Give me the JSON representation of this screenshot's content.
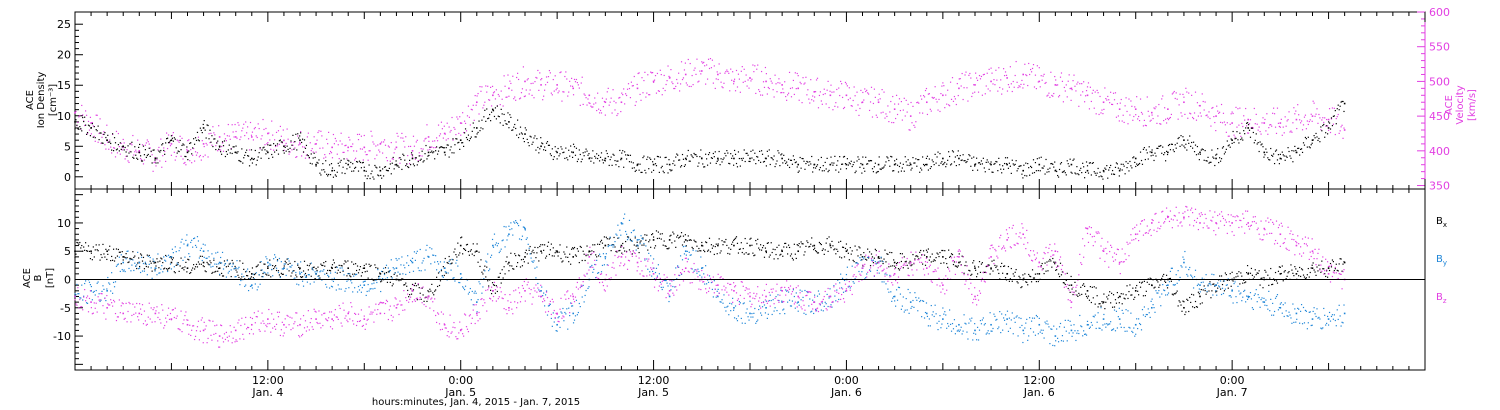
{
  "chart_data": [
    {
      "type": "scatter",
      "panel": "top",
      "title": "",
      "ylabel_left": [
        "ACE",
        "Ion Density",
        "[cm⁻³]"
      ],
      "ylabel_right": [
        "ACE",
        "Velocity",
        "[km/s]"
      ],
      "xlim_hours": [
        0,
        84
      ],
      "ylim_left": [
        -2,
        27
      ],
      "ylim_right": [
        345,
        600
      ],
      "yticks_left": [
        "0",
        "5",
        "10",
        "15",
        "20",
        "25"
      ],
      "yticks_right": [
        "350",
        "400",
        "450",
        "500",
        "550",
        "600"
      ],
      "colors": {
        "density": "#000000",
        "velocity": "#e23fe2"
      },
      "series": [
        {
          "name": "",
          "axis": "left",
          "color": "#000000",
          "x": [
            0,
            1,
            2,
            3,
            4,
            5,
            6,
            7,
            8,
            9,
            10,
            11,
            12,
            13,
            14,
            15,
            16,
            17,
            18,
            19,
            20,
            21,
            22,
            23,
            24,
            25,
            26,
            27,
            28,
            29,
            30,
            31,
            32,
            33,
            34,
            35,
            36,
            37,
            38,
            39,
            40,
            41,
            42,
            43,
            44,
            45,
            46,
            47,
            48,
            49,
            50,
            51,
            52,
            53,
            54,
            55,
            56,
            57,
            58,
            59,
            60,
            61,
            62,
            63,
            64,
            65,
            66,
            67,
            68,
            69,
            70,
            71,
            72,
            73,
            74,
            75,
            76,
            77,
            78,
            79
          ],
          "y": [
            9,
            8,
            6,
            5,
            4,
            3,
            6,
            4,
            8,
            5,
            4,
            3,
            4,
            5,
            6,
            2,
            1,
            2,
            1,
            1,
            2,
            3,
            4,
            4,
            6,
            8,
            11,
            9,
            7,
            5,
            4,
            4,
            3,
            3,
            3,
            2,
            2,
            2,
            3,
            3,
            3,
            3,
            3,
            3,
            3,
            2,
            2,
            2,
            2,
            2,
            2,
            2,
            2,
            2,
            3,
            3,
            2,
            2,
            2,
            1,
            2,
            1,
            2,
            1,
            1,
            1,
            3,
            4,
            4,
            6,
            4,
            3,
            6,
            8,
            4,
            3,
            4,
            6,
            8,
            12
          ]
        },
        {
          "name": "",
          "axis": "right",
          "color": "#e23fe2",
          "x": [
            0,
            1,
            2,
            3,
            4,
            5,
            6,
            7,
            8,
            9,
            10,
            11,
            12,
            13,
            14,
            15,
            16,
            17,
            18,
            19,
            20,
            21,
            22,
            23,
            24,
            25,
            26,
            27,
            28,
            29,
            30,
            31,
            32,
            33,
            34,
            35,
            36,
            37,
            38,
            39,
            40,
            41,
            42,
            43,
            44,
            45,
            46,
            47,
            48,
            49,
            50,
            51,
            52,
            53,
            54,
            55,
            56,
            57,
            58,
            59,
            60,
            61,
            62,
            63,
            64,
            65,
            66,
            67,
            68,
            69,
            70,
            71,
            72,
            73,
            74,
            75,
            76,
            77,
            78,
            79
          ],
          "y": [
            455,
            440,
            415,
            405,
            400,
            390,
            410,
            400,
            410,
            420,
            420,
            420,
            425,
            415,
            410,
            410,
            405,
            405,
            405,
            410,
            405,
            400,
            420,
            425,
            440,
            470,
            480,
            490,
            500,
            495,
            495,
            490,
            480,
            470,
            470,
            490,
            500,
            505,
            510,
            515,
            510,
            500,
            505,
            500,
            495,
            490,
            485,
            480,
            480,
            470,
            470,
            460,
            450,
            470,
            480,
            490,
            495,
            500,
            505,
            510,
            500,
            495,
            490,
            480,
            470,
            460,
            460,
            455,
            460,
            470,
            465,
            450,
            440,
            445,
            440,
            440,
            445,
            450,
            445,
            430
          ]
        }
      ]
    },
    {
      "type": "scatter",
      "panel": "bottom",
      "title": "",
      "ylabel_left": [
        "ACE",
        "B",
        "[nT]"
      ],
      "xlim_hours": [
        0,
        84
      ],
      "ylim_left": [
        -16,
        16
      ],
      "yticks_left": [
        "-10",
        "-5",
        "0",
        "5",
        "10"
      ],
      "zero_line": true,
      "x_tick_labels": [
        {
          "time": "12:00",
          "date": "Jan. 4",
          "hours": 12
        },
        {
          "time": "0:00",
          "date": "Jan. 5",
          "hours": 24
        },
        {
          "time": "12:00",
          "date": "Jan. 5",
          "hours": 36
        },
        {
          "time": "0:00",
          "date": "Jan. 6",
          "hours": 48
        },
        {
          "time": "12:00",
          "date": "Jan. 6",
          "hours": 60
        },
        {
          "time": "0:00",
          "date": "Jan. 7",
          "hours": 72
        }
      ],
      "xlabel": "hours:minutes, Jan.  4, 2015 - Jan.  7, 2015",
      "series": [
        {
          "name": "B",
          "sub": "x",
          "color": "#000000",
          "x": [
            0,
            1,
            2,
            3,
            4,
            5,
            6,
            7,
            8,
            9,
            10,
            11,
            12,
            13,
            14,
            15,
            16,
            17,
            18,
            19,
            20,
            21,
            22,
            23,
            24,
            25,
            26,
            27,
            28,
            29,
            30,
            31,
            32,
            33,
            34,
            35,
            36,
            37,
            38,
            39,
            40,
            41,
            42,
            43,
            44,
            45,
            46,
            47,
            48,
            49,
            50,
            51,
            52,
            53,
            54,
            55,
            56,
            57,
            58,
            59,
            60,
            61,
            62,
            63,
            64,
            65,
            66,
            67,
            68,
            69,
            70,
            71,
            72,
            73,
            74,
            75,
            76,
            77,
            78,
            79
          ],
          "y": [
            5,
            5,
            5,
            4,
            3,
            3,
            3,
            2,
            3,
            2,
            2,
            1,
            2,
            2,
            2,
            1,
            2,
            2,
            2,
            1,
            0,
            -2,
            -3,
            2,
            6,
            5,
            -2,
            3,
            4,
            5,
            5,
            4,
            5,
            6,
            6,
            6,
            7,
            7,
            7,
            6,
            6,
            6,
            6,
            5,
            5,
            5,
            6,
            6,
            5,
            4,
            4,
            3,
            3,
            4,
            4,
            3,
            2,
            2,
            1,
            0,
            1,
            3,
            -1,
            -2,
            -4,
            -3,
            -2,
            -1,
            0,
            -5,
            -3,
            -1,
            0,
            1,
            0,
            1,
            1,
            2,
            2,
            3
          ]
        },
        {
          "name": "B",
          "sub": "y",
          "color": "#1f86d8",
          "x": [
            0,
            1,
            2,
            3,
            4,
            5,
            6,
            7,
            8,
            9,
            10,
            11,
            12,
            13,
            14,
            15,
            16,
            17,
            18,
            19,
            20,
            21,
            22,
            23,
            24,
            25,
            26,
            27,
            28,
            29,
            30,
            31,
            32,
            33,
            34,
            35,
            36,
            37,
            38,
            39,
            40,
            41,
            42,
            43,
            44,
            45,
            46,
            47,
            48,
            49,
            50,
            51,
            52,
            53,
            54,
            55,
            56,
            57,
            58,
            59,
            60,
            61,
            62,
            63,
            64,
            65,
            66,
            67,
            68,
            69,
            70,
            71,
            72,
            73,
            74,
            75,
            76,
            77,
            78,
            79
          ],
          "y": [
            -3,
            -2,
            -2,
            3,
            3,
            2,
            4,
            6,
            5,
            3,
            2,
            -1,
            3,
            2,
            1,
            1,
            0,
            0,
            -1,
            0,
            2,
            3,
            4,
            2,
            1,
            -4,
            6,
            8,
            9,
            -2,
            -8,
            -6,
            0,
            4,
            10,
            7,
            2,
            -3,
            5,
            2,
            -3,
            -5,
            -6,
            -5,
            -4,
            -4,
            -4,
            -3,
            0,
            2,
            3,
            -3,
            -4,
            -6,
            -7,
            -8,
            -9,
            -8,
            -7,
            -9,
            -8,
            -10,
            -9,
            -8,
            -7,
            -7,
            -8,
            -5,
            -1,
            3,
            -1,
            -1,
            -2,
            -3,
            -4,
            -5,
            -6,
            -7,
            -7,
            -6
          ]
        },
        {
          "name": "B",
          "sub": "z",
          "color": "#e23fe2",
          "x": [
            0,
            1,
            2,
            3,
            4,
            5,
            6,
            7,
            8,
            9,
            10,
            11,
            12,
            13,
            14,
            15,
            16,
            17,
            18,
            19,
            20,
            21,
            22,
            23,
            24,
            25,
            26,
            27,
            28,
            29,
            30,
            31,
            32,
            33,
            34,
            35,
            36,
            37,
            38,
            39,
            40,
            41,
            42,
            43,
            44,
            45,
            46,
            47,
            48,
            49,
            50,
            51,
            52,
            53,
            54,
            55,
            56,
            57,
            58,
            59,
            60,
            61,
            62,
            63,
            64,
            65,
            66,
            67,
            68,
            69,
            70,
            71,
            72,
            73,
            74,
            75,
            76,
            77,
            78,
            79
          ],
          "y": [
            -3,
            -4,
            -5,
            -6,
            -6,
            -6,
            -7,
            -8,
            -9,
            -10,
            -9,
            -8,
            -7,
            -8,
            -8,
            -7,
            -7,
            -6,
            -7,
            -6,
            -5,
            -2,
            -3,
            -8,
            -9,
            -6,
            -2,
            -5,
            -2,
            -3,
            -6,
            -3,
            4,
            0,
            4,
            3,
            1,
            -2,
            2,
            0,
            -1,
            -2,
            -3,
            -3,
            -2,
            -3,
            -4,
            -3,
            -2,
            2,
            3,
            1,
            3,
            2,
            -1,
            4,
            -3,
            4,
            7,
            8,
            3,
            5,
            -4,
            9,
            5,
            3,
            8,
            10,
            11,
            11,
            10,
            10,
            10,
            10,
            9,
            8,
            6,
            5,
            1,
            0
          ]
        }
      ],
      "legend": [
        "B",
        "B",
        "B"
      ]
    }
  ]
}
